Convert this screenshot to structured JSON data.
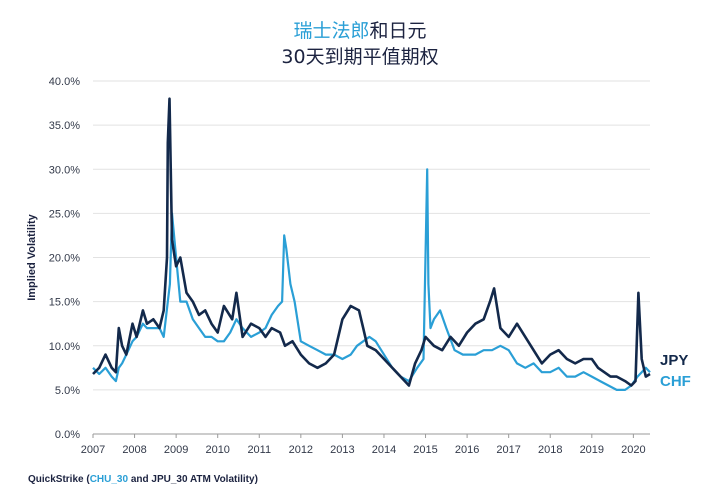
{
  "title_line1_cyan": "瑞士法郎",
  "title_line1_dark": "和日元",
  "title_line2": "30天到期平值期权",
  "source_prefix": "QuickStrike (",
  "source_highlight": "CHU_30",
  "source_suffix": " and JPU_30 ATM Volatility)",
  "colors": {
    "chf": "#2a9fd6",
    "jpy": "#13294b",
    "grid": "#e2e2e2"
  },
  "chart_data": {
    "type": "line",
    "ylabel": "Implied Volatility",
    "xlabel": "",
    "ylim": [
      0,
      40
    ],
    "xlim": [
      2007,
      2020.4
    ],
    "ytick_labels": [
      "0.0%",
      "5.0%",
      "10.0%",
      "15.0%",
      "20.0%",
      "25.0%",
      "30.0%",
      "35.0%",
      "40.0%"
    ],
    "ytick_values": [
      0,
      5,
      10,
      15,
      20,
      25,
      30,
      35,
      40
    ],
    "xtick_labels": [
      "2007",
      "2008",
      "2009",
      "2010",
      "2011",
      "2012",
      "2013",
      "2014",
      "2015",
      "2016",
      "2017",
      "2018",
      "2019",
      "2020"
    ],
    "grid": true,
    "legend": "right-end labels",
    "series": [
      {
        "name": "JPY",
        "color": "#13294b",
        "x": [
          2007.0,
          2007.15,
          2007.3,
          2007.45,
          2007.55,
          2007.62,
          2007.7,
          2007.8,
          2007.95,
          2008.05,
          2008.2,
          2008.3,
          2008.45,
          2008.6,
          2008.7,
          2008.78,
          2008.8,
          2008.84,
          2008.9,
          2009.0,
          2009.1,
          2009.25,
          2009.4,
          2009.55,
          2009.7,
          2009.85,
          2010.0,
          2010.15,
          2010.35,
          2010.45,
          2010.6,
          2010.8,
          2011.0,
          2011.15,
          2011.3,
          2011.5,
          2011.62,
          2011.8,
          2012.0,
          2012.2,
          2012.4,
          2012.6,
          2012.8,
          2013.0,
          2013.2,
          2013.4,
          2013.5,
          2013.6,
          2013.8,
          2014.0,
          2014.3,
          2014.5,
          2014.6,
          2014.75,
          2014.9,
          2015.0,
          2015.2,
          2015.4,
          2015.6,
          2015.8,
          2016.0,
          2016.2,
          2016.4,
          2016.55,
          2016.65,
          2016.8,
          2017.0,
          2017.2,
          2017.4,
          2017.6,
          2017.8,
          2018.0,
          2018.2,
          2018.4,
          2018.6,
          2018.8,
          2019.0,
          2019.15,
          2019.3,
          2019.45,
          2019.6,
          2019.8,
          2019.95,
          2020.05,
          2020.12,
          2020.2,
          2020.3,
          2020.4
        ],
        "y": [
          6.8,
          7.5,
          9.0,
          7.5,
          7.0,
          12.0,
          10.0,
          9.0,
          12.5,
          11.0,
          14.0,
          12.5,
          13.0,
          12.0,
          14.0,
          20.0,
          33.0,
          38.0,
          22.0,
          19.0,
          20.0,
          16.0,
          15.0,
          13.5,
          14.0,
          12.5,
          11.5,
          14.5,
          13.0,
          16.0,
          11.0,
          12.5,
          12.0,
          11.0,
          12.0,
          11.5,
          10.0,
          10.5,
          9.0,
          8.0,
          7.5,
          8.0,
          9.0,
          13.0,
          14.5,
          14.0,
          12.0,
          10.0,
          9.5,
          8.5,
          7.0,
          6.0,
          5.5,
          8.0,
          9.5,
          11.0,
          10.0,
          9.5,
          11.0,
          10.0,
          11.5,
          12.5,
          13.0,
          15.0,
          16.5,
          12.0,
          11.0,
          12.5,
          11.0,
          9.5,
          8.0,
          9.0,
          9.5,
          8.5,
          8.0,
          8.5,
          8.5,
          7.5,
          7.0,
          6.5,
          6.5,
          6.0,
          5.5,
          6.0,
          16.0,
          8.5,
          6.5,
          6.8
        ]
      },
      {
        "name": "CHF",
        "color": "#2a9fd6",
        "x": [
          2007.0,
          2007.15,
          2007.3,
          2007.45,
          2007.55,
          2007.62,
          2007.7,
          2007.8,
          2007.95,
          2008.05,
          2008.2,
          2008.3,
          2008.45,
          2008.6,
          2008.7,
          2008.8,
          2008.85,
          2008.9,
          2009.0,
          2009.1,
          2009.25,
          2009.4,
          2009.55,
          2009.7,
          2009.85,
          2010.0,
          2010.15,
          2010.3,
          2010.45,
          2010.6,
          2010.8,
          2011.0,
          2011.15,
          2011.3,
          2011.45,
          2011.55,
          2011.6,
          2011.65,
          2011.75,
          2011.85,
          2012.0,
          2012.2,
          2012.4,
          2012.6,
          2012.8,
          2013.0,
          2013.2,
          2013.35,
          2013.5,
          2013.65,
          2013.8,
          2014.0,
          2014.2,
          2014.4,
          2014.6,
          2014.8,
          2014.95,
          2015.04,
          2015.07,
          2015.12,
          2015.2,
          2015.35,
          2015.5,
          2015.7,
          2015.9,
          2016.0,
          2016.2,
          2016.4,
          2016.6,
          2016.8,
          2017.0,
          2017.2,
          2017.4,
          2017.6,
          2017.8,
          2018.0,
          2018.2,
          2018.4,
          2018.6,
          2018.8,
          2019.0,
          2019.2,
          2019.4,
          2019.6,
          2019.8,
          2019.95,
          2020.1,
          2020.2,
          2020.3,
          2020.4
        ],
        "y": [
          7.5,
          6.8,
          7.5,
          6.5,
          6.0,
          7.5,
          8.0,
          9.0,
          10.5,
          11.0,
          12.5,
          12.0,
          12.0,
          12.0,
          11.0,
          15.0,
          17.0,
          25.0,
          20.0,
          15.0,
          15.0,
          13.0,
          12.0,
          11.0,
          11.0,
          10.5,
          10.5,
          11.5,
          13.0,
          12.0,
          11.0,
          11.5,
          12.0,
          13.5,
          14.5,
          15.0,
          22.5,
          21.0,
          17.0,
          15.0,
          10.5,
          10.0,
          9.5,
          9.0,
          9.0,
          8.5,
          9.0,
          10.0,
          10.5,
          11.0,
          10.5,
          9.0,
          7.5,
          6.5,
          6.0,
          7.5,
          8.5,
          30.0,
          17.0,
          12.0,
          13.0,
          14.0,
          12.0,
          9.5,
          9.0,
          9.0,
          9.0,
          9.5,
          9.5,
          10.0,
          9.5,
          8.0,
          7.5,
          8.0,
          7.0,
          7.0,
          7.5,
          6.5,
          6.5,
          7.0,
          6.5,
          6.0,
          5.5,
          5.0,
          5.0,
          5.5,
          6.5,
          7.0,
          7.5,
          7.0
        ]
      }
    ]
  }
}
